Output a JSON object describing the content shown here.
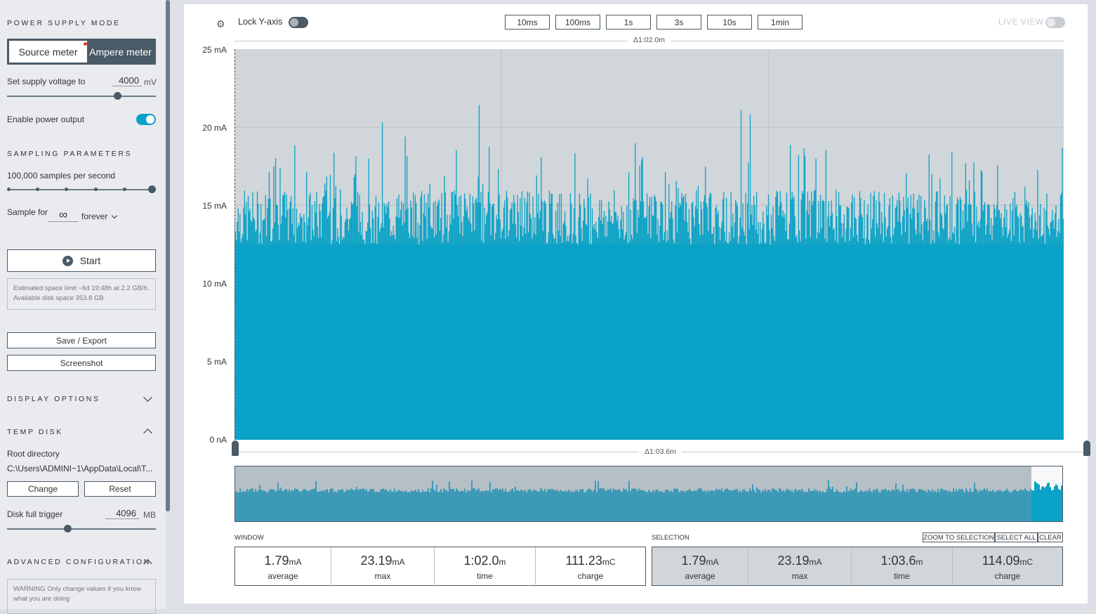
{
  "sidebar": {
    "power_mode_title": "POWER SUPPLY MODE",
    "source_meter": "Source meter",
    "ampere_meter": "Ampere meter",
    "set_voltage_label": "Set supply voltage to",
    "voltage_value": "4000",
    "voltage_unit": "mV",
    "enable_output_label": "Enable power output",
    "sampling_title": "SAMPLING PARAMETERS",
    "samples_label": "100,000 samples per second",
    "sample_for_label": "Sample for",
    "sample_for_value": "∞",
    "sample_for_unit": "forever",
    "start_label": "Start",
    "space_info": "Estimated space limit ~6d 19:48h at 2.2 GB/h. Available disk space 353.8 GB",
    "save_export": "Save / Export",
    "screenshot": "Screenshot",
    "display_options_title": "DISPLAY OPTIONS",
    "temp_disk_title": "TEMP DISK",
    "root_dir_label": "Root directory",
    "root_dir_value": "C:\\Users\\ADMINI~1\\AppData\\Local\\T...",
    "change_label": "Change",
    "reset_label": "Reset",
    "disk_trigger_label": "Disk full trigger",
    "disk_trigger_value": "4096",
    "disk_trigger_unit": "MB",
    "advanced_title": "ADVANCED CONFIGURATION",
    "warning": "WARNING Only change values if you know what you are doing",
    "voltage_slider_level": 0.74,
    "disk_slider_level": 0.4
  },
  "toolbar": {
    "lock_y": "Lock Y-axis",
    "time_buttons": [
      "10ms",
      "100ms",
      "1s",
      "3s",
      "10s",
      "1min"
    ],
    "live_view": "LIVE VIEW"
  },
  "chart": {
    "top_delta": "Δ1:02.0m",
    "bottom_delta": "Δ1:03.6m"
  },
  "chart_data": {
    "type": "area",
    "title": "",
    "ylabel": "",
    "xlabel": "",
    "yticks": [
      "25 mA",
      "20 mA",
      "15 mA",
      "10 mA",
      "5 mA",
      "0 nA"
    ],
    "ylim": [
      0,
      25
    ],
    "grid": true,
    "color": "#0aa2c6",
    "series": [
      {
        "name": "",
        "baseline_peak_mA": 15,
        "max_mA": 23.19
      }
    ]
  },
  "stats": {
    "window_label": "WINDOW",
    "selection_label": "SELECTION",
    "zoom_to_selection": "ZOOM TO SELECTION",
    "select_all": "SELECT ALL",
    "clear": "CLEAR",
    "window": [
      {
        "value": "1.79",
        "unit": "mA",
        "name": "average"
      },
      {
        "value": "23.19",
        "unit": "mA",
        "name": "max"
      },
      {
        "value": "1:02.0",
        "unit": "m",
        "name": "time"
      },
      {
        "value": "111.23",
        "unit": "mC",
        "name": "charge"
      }
    ],
    "selection": [
      {
        "value": "1.79",
        "unit": "mA",
        "name": "average"
      },
      {
        "value": "23.19",
        "unit": "mA",
        "name": "max"
      },
      {
        "value": "1:03.6",
        "unit": "m",
        "name": "time"
      },
      {
        "value": "114.09",
        "unit": "mC",
        "name": "charge"
      }
    ]
  },
  "colors": {
    "accent": "#0aa2c6",
    "dark": "#4a5a66"
  }
}
